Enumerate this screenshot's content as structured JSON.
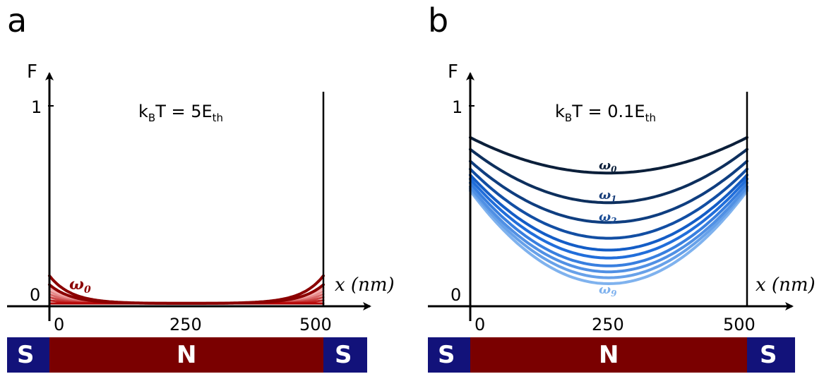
{
  "panels": [
    {
      "letter": "a",
      "temperature_prefix": "k",
      "temperature_sub": "B",
      "temperature_mid": "T = 5E",
      "temperature_sub2": "th",
      "y_axis_label": "F",
      "x_axis_label": "x (nm)",
      "y_ticks": [
        "1",
        "0"
      ],
      "x_ticks": [
        "0",
        "250",
        "500"
      ],
      "annotations": [
        {
          "symbol": "ω",
          "subscript": "0"
        }
      ],
      "bar": [
        "S",
        "N",
        "S"
      ]
    },
    {
      "letter": "b",
      "temperature_prefix": "k",
      "temperature_sub": "B",
      "temperature_mid": "T = 0.1E",
      "temperature_sub2": "th",
      "y_axis_label": "F",
      "x_axis_label": "x (nm)",
      "y_ticks": [
        "1",
        "0"
      ],
      "x_ticks": [
        "0",
        "250",
        "500"
      ],
      "annotations": [
        {
          "symbol": "ω",
          "subscript": "0"
        },
        {
          "symbol": "ω",
          "subscript": "1"
        },
        {
          "symbol": "ω",
          "subscript": "2"
        },
        {
          "symbol": "ω",
          "subscript": "9"
        }
      ],
      "bar": [
        "S",
        "N",
        "S"
      ]
    }
  ],
  "colors": {
    "superconductor": "#12127a",
    "normal": "#7a0000",
    "panel_a_curves": "#8b0000",
    "panel_b_dark": "#0b1f3a",
    "panel_b_light": "#7fb2ee"
  },
  "chart_data": [
    {
      "type": "line",
      "title": "",
      "xlabel": "x (nm)",
      "ylabel": "F",
      "xlim": [
        0,
        500
      ],
      "ylim": [
        0,
        1
      ],
      "series": [
        {
          "name": "ω0",
          "x": [
            0,
            25,
            50,
            100,
            250,
            400,
            450,
            475,
            500
          ],
          "values": [
            0.14,
            0.08,
            0.045,
            0.015,
            0.002,
            0.015,
            0.045,
            0.08,
            0.14
          ]
        },
        {
          "x": [
            0,
            25,
            50,
            100,
            250,
            400,
            450,
            475,
            500
          ],
          "values": [
            0.095,
            0.055,
            0.03,
            0.01,
            0.001,
            0.01,
            0.03,
            0.055,
            0.095
          ]
        }
      ]
    },
    {
      "type": "line",
      "title": "",
      "xlabel": "x (nm)",
      "ylabel": "F",
      "xlim": [
        0,
        500
      ],
      "ylim": [
        0,
        1
      ],
      "series": [
        {
          "name": "ω0",
          "x": [
            0,
            250,
            500
          ],
          "values": [
            0.84,
            0.66,
            0.84
          ]
        },
        {
          "name": "ω1",
          "x": [
            0,
            250,
            500
          ],
          "values": [
            0.78,
            0.51,
            0.78
          ]
        },
        {
          "name": "ω2",
          "x": [
            0,
            250,
            500
          ],
          "values": [
            0.72,
            0.41,
            0.72
          ]
        },
        {
          "x": [
            0,
            250,
            500
          ],
          "values": [
            0.68,
            0.33,
            0.68
          ]
        },
        {
          "x": [
            0,
            250,
            500
          ],
          "values": [
            0.65,
            0.27,
            0.65
          ]
        },
        {
          "x": [
            0,
            250,
            500
          ],
          "values": [
            0.63,
            0.23,
            0.63
          ]
        },
        {
          "x": [
            0,
            250,
            500
          ],
          "values": [
            0.61,
            0.19,
            0.61
          ]
        },
        {
          "x": [
            0,
            250,
            500
          ],
          "values": [
            0.59,
            0.16,
            0.59
          ]
        },
        {
          "x": [
            0,
            250,
            500
          ],
          "values": [
            0.58,
            0.13,
            0.58
          ]
        },
        {
          "name": "ω9",
          "x": [
            0,
            250,
            500
          ],
          "values": [
            0.57,
            0.1,
            0.57
          ]
        }
      ]
    }
  ]
}
